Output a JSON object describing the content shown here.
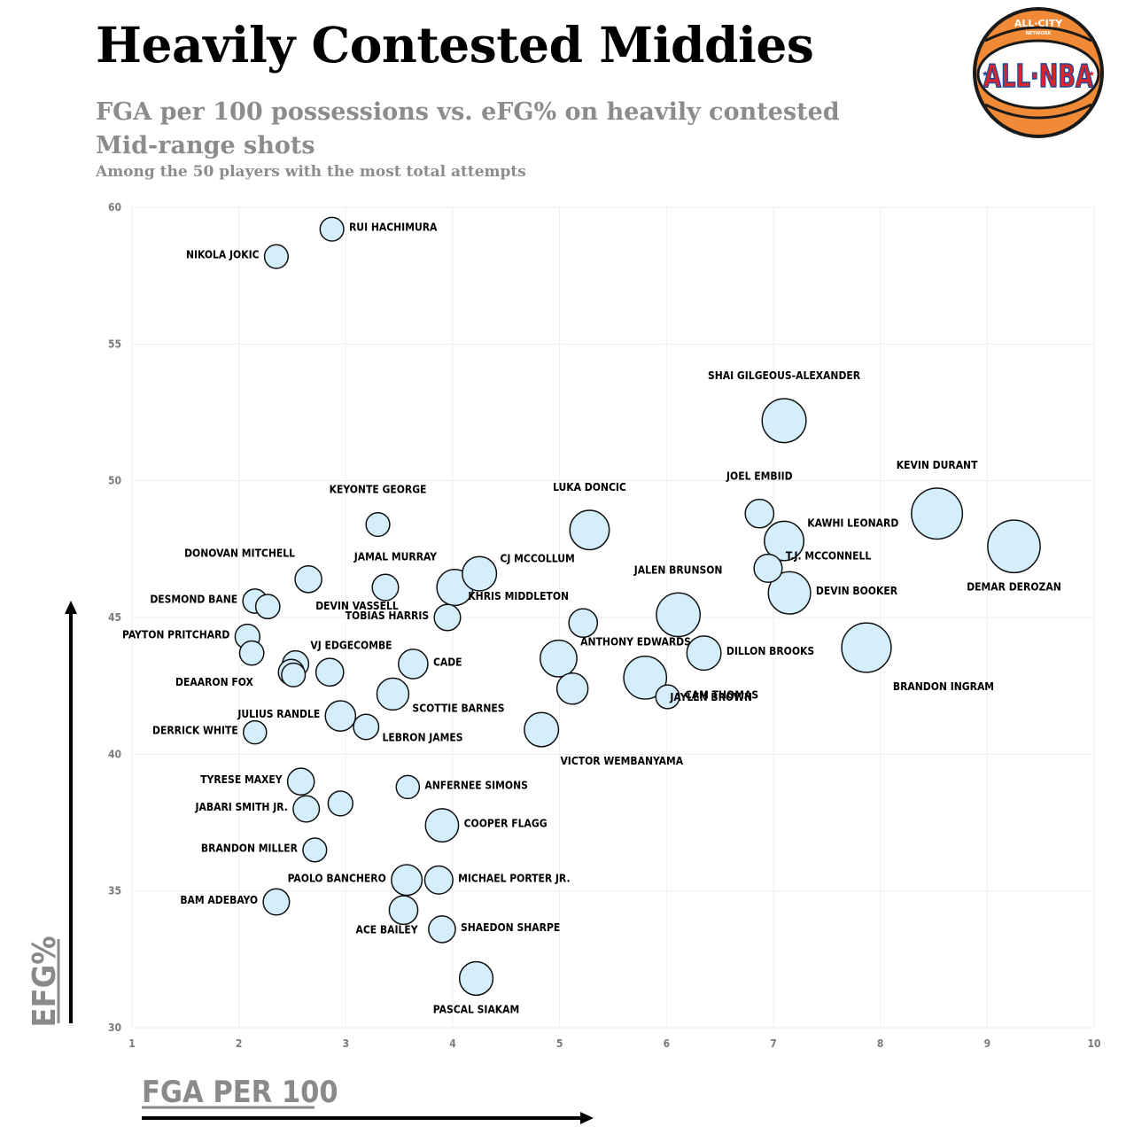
{
  "header": {
    "title": "Heavily Contested Middies",
    "subtitle": "FGA per 100 possessions vs. eFG% on heavily contested Mid-range shots",
    "note": "Among the 50 players with the most total attempts"
  },
  "logo": {
    "top_text": "ALL·CITY",
    "small_text": "NETWORK",
    "main_text": "ALL·NBA"
  },
  "colors": {
    "bubble_fill": "#d4eefc",
    "bubble_stroke": "#111111",
    "grid": "#eeeeee",
    "axis_title": "#8a8a8a",
    "logo_ball": "#f08a36",
    "logo_red": "#d7262c",
    "logo_blue": "#1f4a9a"
  },
  "chart_data": {
    "type": "scatter",
    "title": "Heavily Contested Middies",
    "xlabel": "FGA PER 100",
    "ylabel": "EFG%",
    "xlim": [
      1,
      10
    ],
    "ylim": [
      30,
      60
    ],
    "xticks": [
      "1",
      "2",
      "3",
      "4",
      "5",
      "6",
      "7",
      "8",
      "9",
      "10"
    ],
    "yticks": [
      "30",
      "35",
      "40",
      "45",
      "50",
      "55",
      "60"
    ],
    "grid": true,
    "points": [
      {
        "x": 2.87,
        "y": 59.2,
        "size": 2.2,
        "label": "RUI HACHIMURA",
        "anchor": "right"
      },
      {
        "x": 2.35,
        "y": 58.2,
        "size": 2.2,
        "label": "NIKOLA JOKIC",
        "anchor": "left"
      },
      {
        "x": 7.1,
        "y": 52.2,
        "size": 7.6,
        "label": "SHAI GILGEOUS-ALEXANDER",
        "anchor": "above"
      },
      {
        "x": 8.53,
        "y": 48.8,
        "size": 10.2,
        "label": "KEVIN DURANT",
        "anchor": "above"
      },
      {
        "x": 6.87,
        "y": 48.8,
        "size": 3.2,
        "label": "JOEL EMBIID",
        "anchor": "above"
      },
      {
        "x": 7.1,
        "y": 47.8,
        "size": 6.1,
        "label": "KAWHI LEONARD",
        "anchor": "right-up"
      },
      {
        "x": 9.25,
        "y": 47.6,
        "size": 10.8,
        "label": "DEMAR DEROZAN",
        "anchor": "below"
      },
      {
        "x": 6.95,
        "y": 46.8,
        "size": 3.1,
        "label": "T.J. MCCONNELL",
        "anchor": "right-up"
      },
      {
        "x": 7.15,
        "y": 45.9,
        "size": 7.0,
        "label": "DEVIN BOOKER",
        "anchor": "right"
      },
      {
        "x": 3.3,
        "y": 48.4,
        "size": 2.2,
        "label": "KEYONTE GEORGE",
        "anchor": "above"
      },
      {
        "x": 5.28,
        "y": 48.2,
        "size": 6.1,
        "label": "LUKA DONCIC",
        "anchor": "above"
      },
      {
        "x": 4.25,
        "y": 46.6,
        "size": 4.6,
        "label": "CJ MCCOLLUM",
        "anchor": "right-up"
      },
      {
        "x": 4.02,
        "y": 46.1,
        "size": 5.1,
        "label": "JAMAL MURRAY",
        "anchor": "above-left"
      },
      {
        "x": 2.65,
        "y": 46.4,
        "size": 2.8,
        "label": "DONOVAN MITCHELL",
        "anchor": "above-left"
      },
      {
        "x": 3.37,
        "y": 46.1,
        "size": 2.7,
        "label": "DEVIN VASSELL",
        "anchor": "below-left"
      },
      {
        "x": 2.15,
        "y": 45.6,
        "size": 2.3,
        "label": "DESMOND BANE",
        "anchor": "left"
      },
      {
        "x": 2.27,
        "y": 45.4,
        "size": 2.3,
        "label": "",
        "anchor": "none"
      },
      {
        "x": 3.95,
        "y": 45.0,
        "size": 2.7,
        "label": "TOBIAS HARRIS",
        "anchor": "left"
      },
      {
        "x": 5.22,
        "y": 44.8,
        "size": 3.2,
        "label": "KHRIS MIDDLETON",
        "anchor": "above-left"
      },
      {
        "x": 6.11,
        "y": 45.1,
        "size": 7.5,
        "label": "JALEN BRUNSON",
        "anchor": "above"
      },
      {
        "x": 6.35,
        "y": 43.7,
        "size": 4.6,
        "label": "DILLON BROOKS",
        "anchor": "right"
      },
      {
        "x": 7.87,
        "y": 43.9,
        "size": 9.6,
        "label": "BRANDON INGRAM",
        "anchor": "below-right"
      },
      {
        "x": 2.08,
        "y": 44.3,
        "size": 2.4,
        "label": "PAYTON PRITCHARD",
        "anchor": "left"
      },
      {
        "x": 2.12,
        "y": 43.7,
        "size": 2.3,
        "label": "",
        "anchor": "none"
      },
      {
        "x": 2.53,
        "y": 43.3,
        "size": 2.7,
        "label": "VJ EDGECOMBE",
        "anchor": "above-right"
      },
      {
        "x": 2.49,
        "y": 43.0,
        "size": 2.6,
        "label": "",
        "anchor": "none"
      },
      {
        "x": 2.51,
        "y": 42.9,
        "size": 2.2,
        "label": "DEAARON FOX",
        "anchor": "left-far"
      },
      {
        "x": 2.85,
        "y": 43.0,
        "size": 3.0,
        "label": "",
        "anchor": "none"
      },
      {
        "x": 3.63,
        "y": 43.3,
        "size": 3.4,
        "label": "CADE",
        "anchor": "right"
      },
      {
        "x": 4.99,
        "y": 43.5,
        "size": 5.3,
        "label": "ANTHONY EDWARDS",
        "anchor": "right-up"
      },
      {
        "x": 5.8,
        "y": 42.8,
        "size": 7.2,
        "label": "JAYLEN BROWN",
        "anchor": "right-down"
      },
      {
        "x": 5.12,
        "y": 42.4,
        "size": 3.8,
        "label": "",
        "anchor": "none"
      },
      {
        "x": 6.01,
        "y": 42.1,
        "size": 2.2,
        "label": "CAM THOMAS",
        "anchor": "right"
      },
      {
        "x": 3.44,
        "y": 42.2,
        "size": 4.0,
        "label": "SCOTTIE BARNES",
        "anchor": "right-down"
      },
      {
        "x": 2.95,
        "y": 41.4,
        "size": 3.6,
        "label": "JULIUS RANDLE",
        "anchor": "left"
      },
      {
        "x": 3.19,
        "y": 41.0,
        "size": 2.5,
        "label": "LEBRON JAMES",
        "anchor": "right-down"
      },
      {
        "x": 2.15,
        "y": 40.8,
        "size": 2.1,
        "label": "DERRICK WHITE",
        "anchor": "left"
      },
      {
        "x": 4.83,
        "y": 40.9,
        "size": 4.6,
        "label": "VICTOR WEMBANYAMA",
        "anchor": "below-right"
      },
      {
        "x": 2.58,
        "y": 39.0,
        "size": 2.8,
        "label": "TYRESE MAXEY",
        "anchor": "left"
      },
      {
        "x": 3.58,
        "y": 38.8,
        "size": 2.1,
        "label": "ANFERNEE SIMONS",
        "anchor": "right"
      },
      {
        "x": 2.95,
        "y": 38.2,
        "size": 2.4,
        "label": "",
        "anchor": "none"
      },
      {
        "x": 2.63,
        "y": 38.0,
        "size": 2.7,
        "label": "JABARI SMITH JR.",
        "anchor": "left"
      },
      {
        "x": 3.9,
        "y": 37.4,
        "size": 4.3,
        "label": "COOPER FLAGG",
        "anchor": "right"
      },
      {
        "x": 2.71,
        "y": 36.5,
        "size": 2.2,
        "label": "BRANDON MILLER",
        "anchor": "left"
      },
      {
        "x": 3.57,
        "y": 35.4,
        "size": 3.7,
        "label": "PAOLO BANCHERO",
        "anchor": "left"
      },
      {
        "x": 3.87,
        "y": 35.4,
        "size": 3.1,
        "label": "MICHAEL PORTER JR.",
        "anchor": "right"
      },
      {
        "x": 2.35,
        "y": 34.6,
        "size": 2.7,
        "label": "BAM ADEBAYO",
        "anchor": "left"
      },
      {
        "x": 3.54,
        "y": 34.3,
        "size": 3.2,
        "label": "ACE BAILEY",
        "anchor": "below-left"
      },
      {
        "x": 3.9,
        "y": 33.6,
        "size": 2.8,
        "label": "SHAEDON SHARPE",
        "anchor": "right"
      },
      {
        "x": 4.22,
        "y": 31.8,
        "size": 4.4,
        "label": "PASCAL SIAKAM",
        "anchor": "below"
      }
    ]
  }
}
